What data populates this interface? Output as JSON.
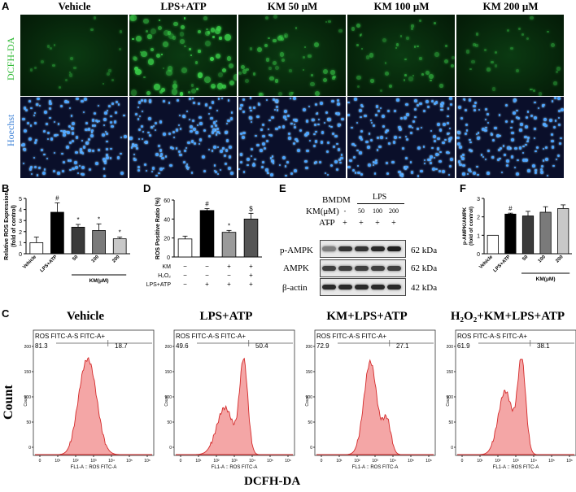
{
  "panel_a": {
    "letter": "A",
    "columns": [
      "Vehicle",
      "LPS+ATP",
      "KM 50 μM",
      "KM 100 μM",
      "KM 200 μM"
    ],
    "rows": [
      "DCFH-DA",
      "Hoechst"
    ],
    "green_intensity": [
      0.15,
      1.0,
      0.55,
      0.45,
      0.25
    ],
    "colors": {
      "dcfh": "#3bd14a",
      "hoechst": "#4aa3ff"
    }
  },
  "panel_b": {
    "letter": "B",
    "ylabel_1": "Relative ROS Expression",
    "ylabel_2": "(fold of control)",
    "xgroup": "KM(μM)",
    "chart_data": {
      "type": "bar",
      "categories": [
        "Vehicle",
        "LPS+ATP",
        "50",
        "100",
        "200"
      ],
      "values": [
        1.0,
        3.75,
        2.4,
        2.1,
        1.35
      ],
      "errors": [
        0.5,
        0.85,
        0.25,
        0.6,
        0.15
      ],
      "marks": [
        "",
        "#",
        "*",
        "*",
        "*"
      ],
      "fills": [
        "#ffffff",
        "#000000",
        "#3a3a3a",
        "#7a7a7a",
        "#c8c8c8"
      ],
      "ylim": [
        0,
        5
      ],
      "yticks": [
        "0",
        "1",
        "2",
        "3",
        "4",
        "5"
      ]
    }
  },
  "panel_d": {
    "letter": "D",
    "ylabel": "ROS Positive Ratio (%)",
    "rows": [
      {
        "label": "KM",
        "signs": [
          "−",
          "−",
          "+",
          "+"
        ]
      },
      {
        "label": "H₂O₂",
        "signs": [
          "−",
          "−",
          "−",
          "+"
        ]
      },
      {
        "label": "LPS+ATP",
        "signs": [
          "−",
          "+",
          "+",
          "+"
        ]
      }
    ],
    "chart_data": {
      "type": "bar",
      "categories": [
        "1",
        "2",
        "3",
        "4"
      ],
      "values": [
        19,
        49,
        26,
        40
      ],
      "errors": [
        3,
        2,
        2,
        6
      ],
      "marks": [
        "",
        "#",
        "*",
        "$"
      ],
      "fills": [
        "#ffffff",
        "#000000",
        "#9a9a9a",
        "#555555"
      ],
      "ylim": [
        0,
        60
      ],
      "yticks": [
        "0",
        "20",
        "40",
        "60"
      ]
    }
  },
  "panel_e": {
    "letter": "E",
    "bmdm": "BMDM",
    "lps": "LPS",
    "km_label": "KM(μM)",
    "atp_label": "ATP",
    "km_values": [
      "-",
      "-",
      "50",
      "100",
      "200"
    ],
    "atp_values": [
      "-",
      "+",
      "+",
      "+",
      "+"
    ],
    "blots": [
      {
        "name": "p-AMPK",
        "kda": "62 kDa"
      },
      {
        "name": "AMPK",
        "kda": "62 kDa"
      },
      {
        "name": "β-actin",
        "kda": "42 kDa"
      }
    ]
  },
  "panel_f": {
    "letter": "F",
    "ylabel_1": "p-AMPK/AMPK",
    "ylabel_2": "(fold of control)",
    "xgroup": "KM(μM)",
    "chart_data": {
      "type": "bar",
      "categories": [
        "Vehicle",
        "LPS+ATP",
        "50",
        "100",
        "200"
      ],
      "values": [
        1.0,
        2.15,
        2.05,
        2.25,
        2.45
      ],
      "errors": [
        0,
        0.05,
        0.25,
        0.3,
        0.2
      ],
      "marks": [
        "",
        "#",
        "",
        "",
        ""
      ],
      "fills": [
        "#ffffff",
        "#000000",
        "#3a3a3a",
        "#7a7a7a",
        "#c8c8c8"
      ],
      "ylim": [
        0,
        3
      ],
      "yticks": [
        "0",
        "1",
        "2",
        "3"
      ]
    }
  },
  "panel_c": {
    "letter": "C",
    "ylabel": "Count",
    "xlabel": "DCFH-DA",
    "gate_title": "ROS FITC-A-S FITC-A+",
    "xaxis_label": "FL1-A :: ROS FITC-A",
    "ytick_label": "Count",
    "yticks": [
      "0",
      "50",
      "100",
      "150",
      "200"
    ],
    "xticks": [
      "0",
      "10¹",
      "10²",
      "10³",
      "10⁴",
      "10⁵",
      "10⁶"
    ],
    "plots": [
      {
        "title": "Vehicle",
        "neg": "81.3",
        "pos": "18.7",
        "shape": "single"
      },
      {
        "title": "LPS+ATP",
        "neg": "49.6",
        "pos": "50.4",
        "shape": "double"
      },
      {
        "title": "KM+LPS+ATP",
        "neg": "72.9",
        "pos": "27.1",
        "shape": "single-shoulder"
      },
      {
        "title": "H₂O₂+KM+LPS+ATP",
        "neg": "61.9",
        "pos": "38.1",
        "shape": "double-mid"
      }
    ],
    "colors": {
      "fill": "#f4a6a6",
      "line": "#d42a2a"
    }
  }
}
